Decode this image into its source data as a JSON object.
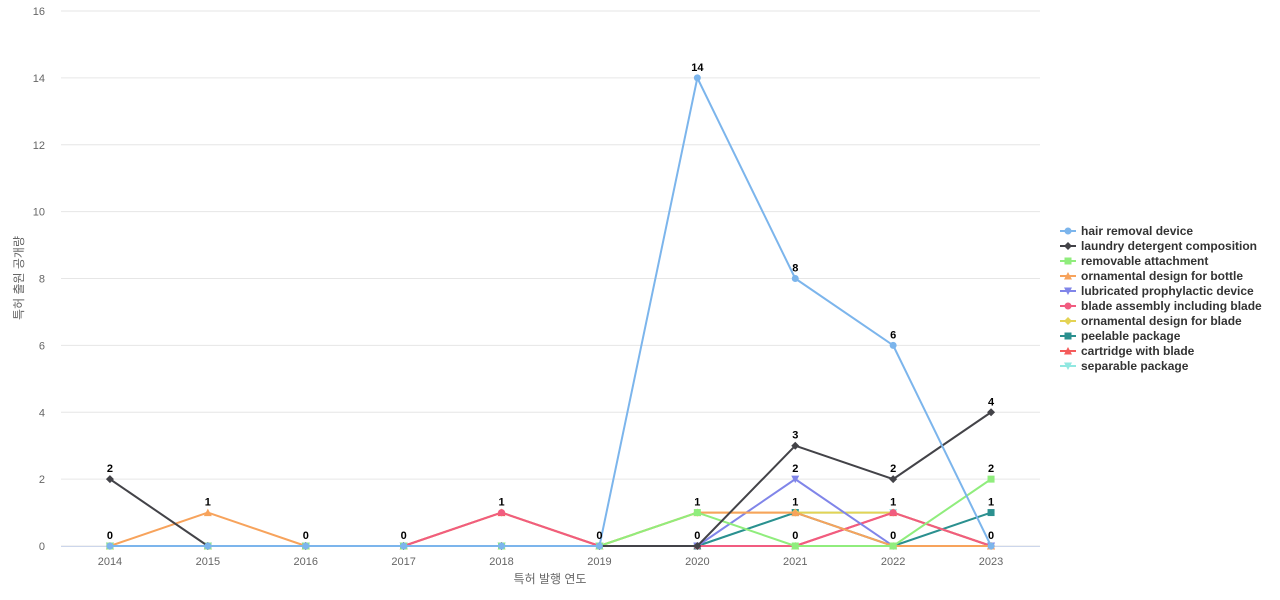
{
  "chart_data": {
    "type": "line",
    "xlabel": "특허 발행 연도",
    "ylabel": "특허 출원 공개량",
    "ylim": [
      0,
      16
    ],
    "yticks": [
      0,
      2,
      4,
      6,
      8,
      10,
      12,
      14,
      16
    ],
    "grid": true,
    "legend_position": "right",
    "categories": [
      "2014",
      "2015",
      "2016",
      "2017",
      "2018",
      "2019",
      "2020",
      "2021",
      "2022",
      "2023"
    ],
    "series": [
      {
        "name": "hair removal device",
        "color": "#7cb5ec",
        "marker": "circle",
        "values": [
          0,
          0,
          0,
          0,
          0,
          0,
          14,
          8,
          6,
          0
        ],
        "labels_shown": [
          false,
          false,
          false,
          false,
          false,
          false,
          true,
          true,
          true,
          false
        ]
      },
      {
        "name": "laundry detergent composition",
        "color": "#434348",
        "marker": "diamond",
        "values": [
          2,
          0,
          0,
          0,
          0,
          0,
          0,
          3,
          2,
          4
        ],
        "labels_shown": [
          true,
          false,
          false,
          false,
          false,
          false,
          false,
          true,
          true,
          true
        ]
      },
      {
        "name": "removable attachment",
        "color": "#90ed7d",
        "marker": "square",
        "values": [
          0,
          0,
          0,
          0,
          0,
          0,
          1,
          0,
          0,
          2
        ],
        "labels_shown": [
          false,
          false,
          false,
          false,
          false,
          false,
          false,
          false,
          false,
          true
        ]
      },
      {
        "name": "ornamental design for bottle",
        "color": "#f7a35c",
        "marker": "triangle",
        "values": [
          0,
          1,
          0,
          0,
          0,
          0,
          1,
          1,
          0,
          0
        ],
        "labels_shown": [
          true,
          true,
          true,
          false,
          false,
          false,
          false,
          false,
          false,
          false
        ]
      },
      {
        "name": "lubricated prophylactic device",
        "color": "#8085e9",
        "marker": "triangle-down",
        "values": [
          0,
          0,
          0,
          0,
          0,
          0,
          0,
          2,
          0,
          0
        ],
        "labels_shown": [
          false,
          false,
          false,
          false,
          false,
          false,
          false,
          true,
          false,
          false
        ]
      },
      {
        "name": "blade assembly including blade",
        "color": "#f15c80",
        "marker": "circle",
        "values": [
          0,
          0,
          0,
          0,
          1,
          0,
          0,
          0,
          1,
          0
        ],
        "labels_shown": [
          false,
          false,
          false,
          false,
          false,
          false,
          false,
          false,
          false,
          false
        ]
      },
      {
        "name": "ornamental design for blade",
        "color": "#e4d354",
        "marker": "diamond",
        "values": [
          0,
          0,
          0,
          0,
          1,
          0,
          1,
          1,
          1,
          0
        ],
        "labels_shown": [
          false,
          false,
          false,
          false,
          false,
          false,
          true,
          false,
          false,
          false
        ]
      },
      {
        "name": "peelable package",
        "color": "#2b908f",
        "marker": "square",
        "values": [
          0,
          0,
          0,
          0,
          0,
          0,
          0,
          1,
          0,
          1
        ],
        "labels_shown": [
          false,
          false,
          false,
          false,
          false,
          true,
          true,
          false,
          true,
          true
        ]
      },
      {
        "name": "cartridge with blade",
        "color": "#f45b5b",
        "marker": "triangle",
        "values": [
          0,
          0,
          0,
          0,
          1,
          0,
          0,
          0,
          1,
          0
        ],
        "labels_shown": [
          false,
          false,
          false,
          true,
          true,
          false,
          false,
          true,
          true,
          false
        ]
      },
      {
        "name": "separable package",
        "color": "#91e8e1",
        "marker": "triangle-down",
        "values": [
          0,
          0,
          0,
          0,
          0,
          0,
          0,
          1,
          1,
          0
        ],
        "labels_shown": [
          false,
          false,
          false,
          false,
          false,
          false,
          false,
          true,
          false,
          true
        ]
      }
    ]
  }
}
